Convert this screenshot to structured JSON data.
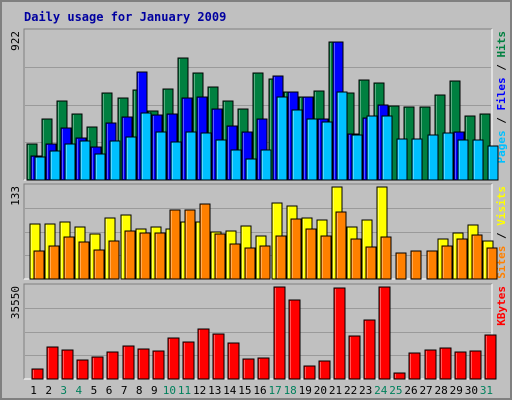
{
  "colors": {
    "background": "#c0c0c0",
    "title": "#0000a0",
    "hits": "#008040",
    "files": "#0000ff",
    "pages": "#00c0ff",
    "visits": "#ffff00",
    "sites": "#ff8000",
    "kbytes": "#ff0000",
    "weekend": "#00805c",
    "weekday": "#000000"
  },
  "chart_data": {
    "type": "bar",
    "title": "Daily usage for January 2009",
    "days": [
      "1",
      "2",
      "3",
      "4",
      "5",
      "6",
      "7",
      "8",
      "9",
      "10",
      "11",
      "12",
      "13",
      "14",
      "15",
      "16",
      "17",
      "18",
      "19",
      "20",
      "21",
      "22",
      "23",
      "24",
      "25",
      "26",
      "27",
      "28",
      "29",
      "30",
      "31"
    ],
    "weekend_days": [
      "3",
      "4",
      "10",
      "11",
      "17",
      "18",
      "24",
      "25",
      "31"
    ],
    "panels": [
      {
        "id": "hits-files-pages",
        "max_label": "922",
        "ylim": [
          0,
          922
        ],
        "axis_label": [
          "Pages",
          "Files",
          "Hits"
        ],
        "series": [
          {
            "name": "Hits",
            "values": [
              225,
              380,
              490,
              410,
              330,
              540,
              510,
              560,
              430,
              570,
              760,
              665,
              580,
              495,
              445,
              665,
              630,
              550,
              520,
              555,
              862,
              545,
              620,
              605,
              460,
              455,
              455,
              530,
              615,
              400,
              410
            ]
          },
          {
            "name": "Files",
            "values": [
              150,
              225,
              325,
              260,
              205,
              355,
              390,
              675,
              405,
              410,
              510,
              520,
              440,
              335,
              300,
              380,
              650,
              550,
              520,
              380,
              862,
              285,
              385,
              465,
              0,
              0,
              0,
              0,
              300,
              0,
              0
            ]
          },
          {
            "name": "Pages",
            "values": [
              145,
              180,
              225,
              240,
              160,
              245,
              270,
              420,
              300,
              235,
              300,
              290,
              250,
              190,
              130,
              185,
              520,
              435,
              380,
              360,
              550,
              280,
              400,
              400,
              255,
              255,
              280,
              295,
              250,
              250,
              210
            ]
          }
        ]
      },
      {
        "id": "visits-sites",
        "max_label": "133",
        "ylim": [
          0,
          133
        ],
        "axis_label": [
          "Sites",
          "Visits"
        ],
        "series": [
          {
            "name": "Visits",
            "values": [
              80,
              80,
              83,
              75,
              65,
              88,
              92,
              72,
              75,
              72,
              82,
              83,
              68,
              70,
              76,
              62,
              110,
              105,
              88,
              85,
              133,
              75,
              86,
              133,
              0,
              0,
              0,
              58,
              67,
              78,
              55
            ]
          },
          {
            "name": "Sites",
            "values": [
              40,
              47,
              60,
              53,
              42,
              55,
              70,
              67,
              67,
              100,
              100,
              108,
              65,
              50,
              45,
              48,
              62,
              87,
              72,
              62,
              97,
              58,
              46,
              60,
              38,
              40,
              40,
              48,
              58,
              63,
              45
            ]
          }
        ]
      },
      {
        "id": "kbytes",
        "max_label": "35550",
        "ylim": [
          0,
          35550
        ],
        "axis_label": [
          "KBytes"
        ],
        "series": [
          {
            "name": "KBytes",
            "values": [
              4000,
              12400,
              11200,
              7200,
              8500,
              10500,
              12800,
              11700,
              10800,
              15900,
              14300,
              19200,
              17400,
              13900,
              7800,
              8100,
              35550,
              30500,
              5000,
              7100,
              35000,
              16800,
              22800,
              35550,
              2500,
              10000,
              11300,
              12000,
              10600,
              10900,
              17000
            ]
          }
        ]
      }
    ]
  }
}
